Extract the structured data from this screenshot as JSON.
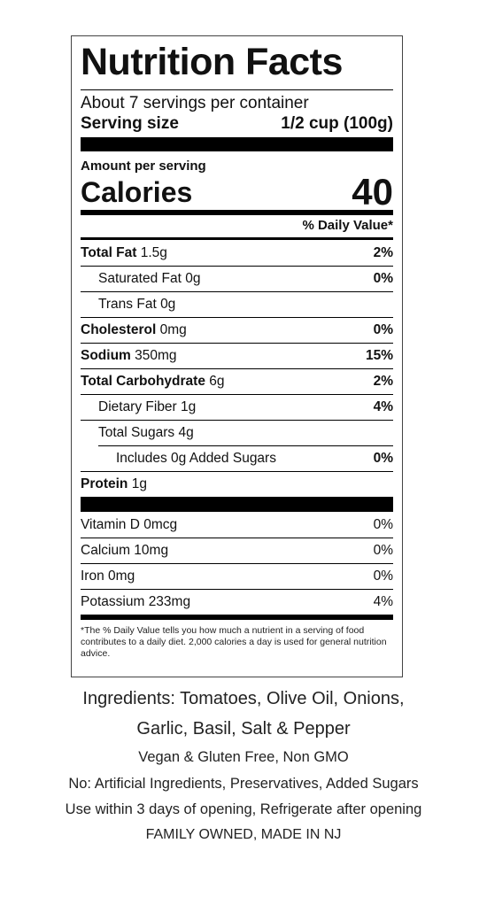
{
  "label": {
    "title": "Nutrition Facts",
    "servings": "About 7 servings per container",
    "serving_size_label": "Serving size",
    "serving_size_value": "1/2 cup (100g)",
    "amount_per_serving": "Amount per serving",
    "calories_label": "Calories",
    "calories_value": "40",
    "daily_value_header": "% Daily Value*",
    "nutrients": [
      {
        "name": "Total Fat",
        "amount": "1.5g",
        "dv": "2%"
      },
      {
        "name": "Saturated Fat",
        "amount": "0g",
        "dv": "0%"
      },
      {
        "name": "Trans Fat",
        "amount": "0g"
      },
      {
        "name": "Cholesterol",
        "amount": "0mg",
        "dv": "0%"
      },
      {
        "name": "Sodium",
        "amount": "350mg",
        "dv": "15%"
      },
      {
        "name": "Total Carbohydrate",
        "amount": "6g",
        "dv": "2%"
      },
      {
        "name": "Dietary Fiber",
        "amount": "1g",
        "dv": "4%"
      },
      {
        "name": "Total Sugars",
        "amount": "4g"
      },
      {
        "name": "Includes 0g Added Sugars",
        "dv": "0%"
      },
      {
        "name": "Protein",
        "amount": "1g"
      }
    ],
    "vitamins": [
      {
        "name": "Vitamin D",
        "amount": "0mcg",
        "dv": "0%"
      },
      {
        "name": "Calcium",
        "amount": "10mg",
        "dv": "0%"
      },
      {
        "name": "Iron",
        "amount": "0mg",
        "dv": "0%"
      },
      {
        "name": "Potassium",
        "amount": "233mg",
        "dv": "4%"
      }
    ],
    "footnote": "*The % Daily Value tells you how much a nutrient in a serving of food contributes to a daily diet. 2,000 calories a day is used for general nutrition advice."
  },
  "info": [
    "Ingredients: Tomatoes, Olive Oil, Onions,",
    "Garlic, Basil, Salt & Pepper",
    "Vegan & Gluten Free, Non GMO",
    "No: Artificial Ingredients, Preservatives, Added Sugars",
    "Use within 3 days of opening, Refrigerate after opening",
    "FAMILY OWNED, MADE IN NJ"
  ]
}
